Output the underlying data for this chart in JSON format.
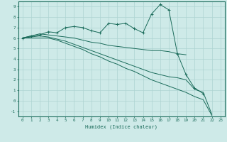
{
  "xlabel": "Humidex (Indice chaleur)",
  "background_color": "#ceeae8",
  "grid_color": "#aed4d2",
  "line_color": "#1a6b5a",
  "xlim": [
    -0.5,
    23.5
  ],
  "ylim": [
    -1.5,
    9.5
  ],
  "xticks": [
    0,
    1,
    2,
    3,
    4,
    5,
    6,
    7,
    8,
    9,
    10,
    11,
    12,
    13,
    14,
    15,
    16,
    17,
    18,
    19,
    20,
    21,
    22,
    23
  ],
  "yticks": [
    -1,
    0,
    1,
    2,
    3,
    4,
    5,
    6,
    7,
    8,
    9
  ],
  "series": [
    {
      "x": [
        0,
        1,
        2,
        3,
        4,
        5,
        6,
        7,
        8,
        9,
        10,
        11,
        12,
        13,
        14,
        15,
        16,
        17,
        18,
        19,
        20,
        21
      ],
      "y": [
        6.0,
        6.2,
        6.3,
        6.6,
        6.5,
        7.0,
        7.1,
        7.0,
        6.7,
        6.5,
        7.4,
        7.3,
        7.4,
        6.9,
        6.5,
        8.3,
        9.2,
        8.7,
        4.5,
        2.5,
        1.2,
        0.7
      ],
      "has_markers": true
    },
    {
      "x": [
        0,
        1,
        2,
        3,
        4,
        5,
        6,
        7,
        8,
        9,
        10,
        11,
        12,
        13,
        14,
        15,
        16,
        17,
        18,
        19
      ],
      "y": [
        6.0,
        6.2,
        6.4,
        6.3,
        6.2,
        6.1,
        6.0,
        5.8,
        5.6,
        5.5,
        5.3,
        5.2,
        5.1,
        5.0,
        4.9,
        4.8,
        4.8,
        4.7,
        4.5,
        4.4
      ],
      "has_markers": false
    },
    {
      "x": [
        0,
        1,
        2,
        3,
        4,
        5,
        6,
        7,
        8,
        9,
        10,
        11,
        12,
        13,
        14,
        15,
        16,
        17,
        18,
        19,
        20,
        21,
        22
      ],
      "y": [
        6.0,
        6.1,
        6.2,
        6.1,
        5.9,
        5.7,
        5.4,
        5.1,
        4.8,
        4.5,
        4.2,
        3.9,
        3.6,
        3.3,
        3.0,
        2.7,
        2.5,
        2.3,
        2.2,
        2.0,
        1.1,
        0.8,
        -1.3
      ],
      "has_markers": false
    },
    {
      "x": [
        0,
        1,
        2,
        3,
        4,
        5,
        6,
        7,
        8,
        9,
        10,
        11,
        12,
        13,
        14,
        15,
        16,
        17,
        18,
        19,
        20,
        21,
        22
      ],
      "y": [
        6.0,
        6.0,
        6.0,
        6.0,
        5.8,
        5.5,
        5.2,
        4.9,
        4.5,
        4.2,
        3.8,
        3.5,
        3.1,
        2.8,
        2.4,
        2.0,
        1.7,
        1.4,
        1.1,
        0.8,
        0.4,
        0.1,
        -1.4
      ],
      "has_markers": false
    }
  ]
}
